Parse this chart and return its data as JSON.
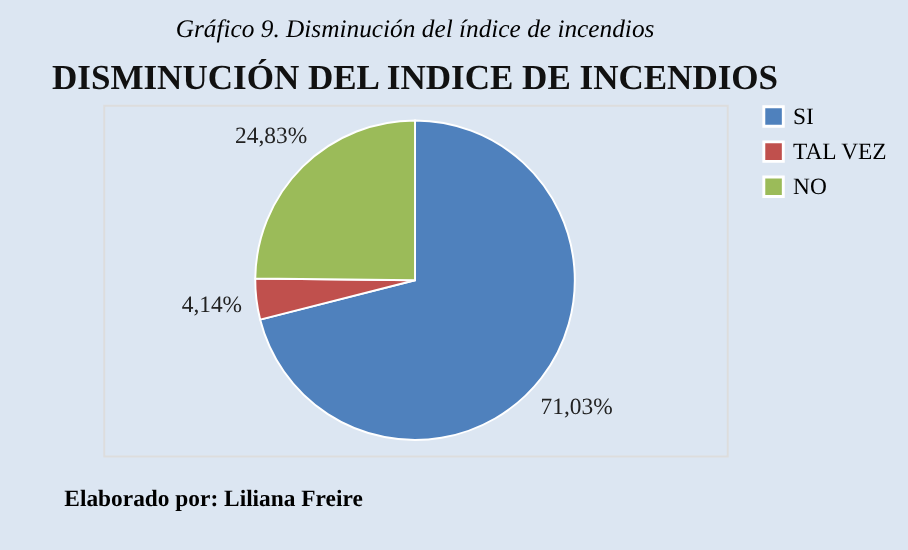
{
  "chart_data": {
    "type": "pie",
    "title": "Gráfico 9. Disminución del índice de incendios",
    "subtitle": "DISMINUCIÓN DEL INDICE DE INCENDIOS",
    "categories": [
      "SI",
      "TAL VEZ",
      "NO"
    ],
    "values": [
      71.03,
      4.14,
      24.83
    ],
    "value_labels": [
      "71,03%",
      "4,14%",
      "24,83%"
    ],
    "colors": [
      "#4f81bd",
      "#c0504d",
      "#9bbb59"
    ],
    "legend": "right",
    "annotations": [
      "Elaborado por: Liliana Freire"
    ]
  }
}
